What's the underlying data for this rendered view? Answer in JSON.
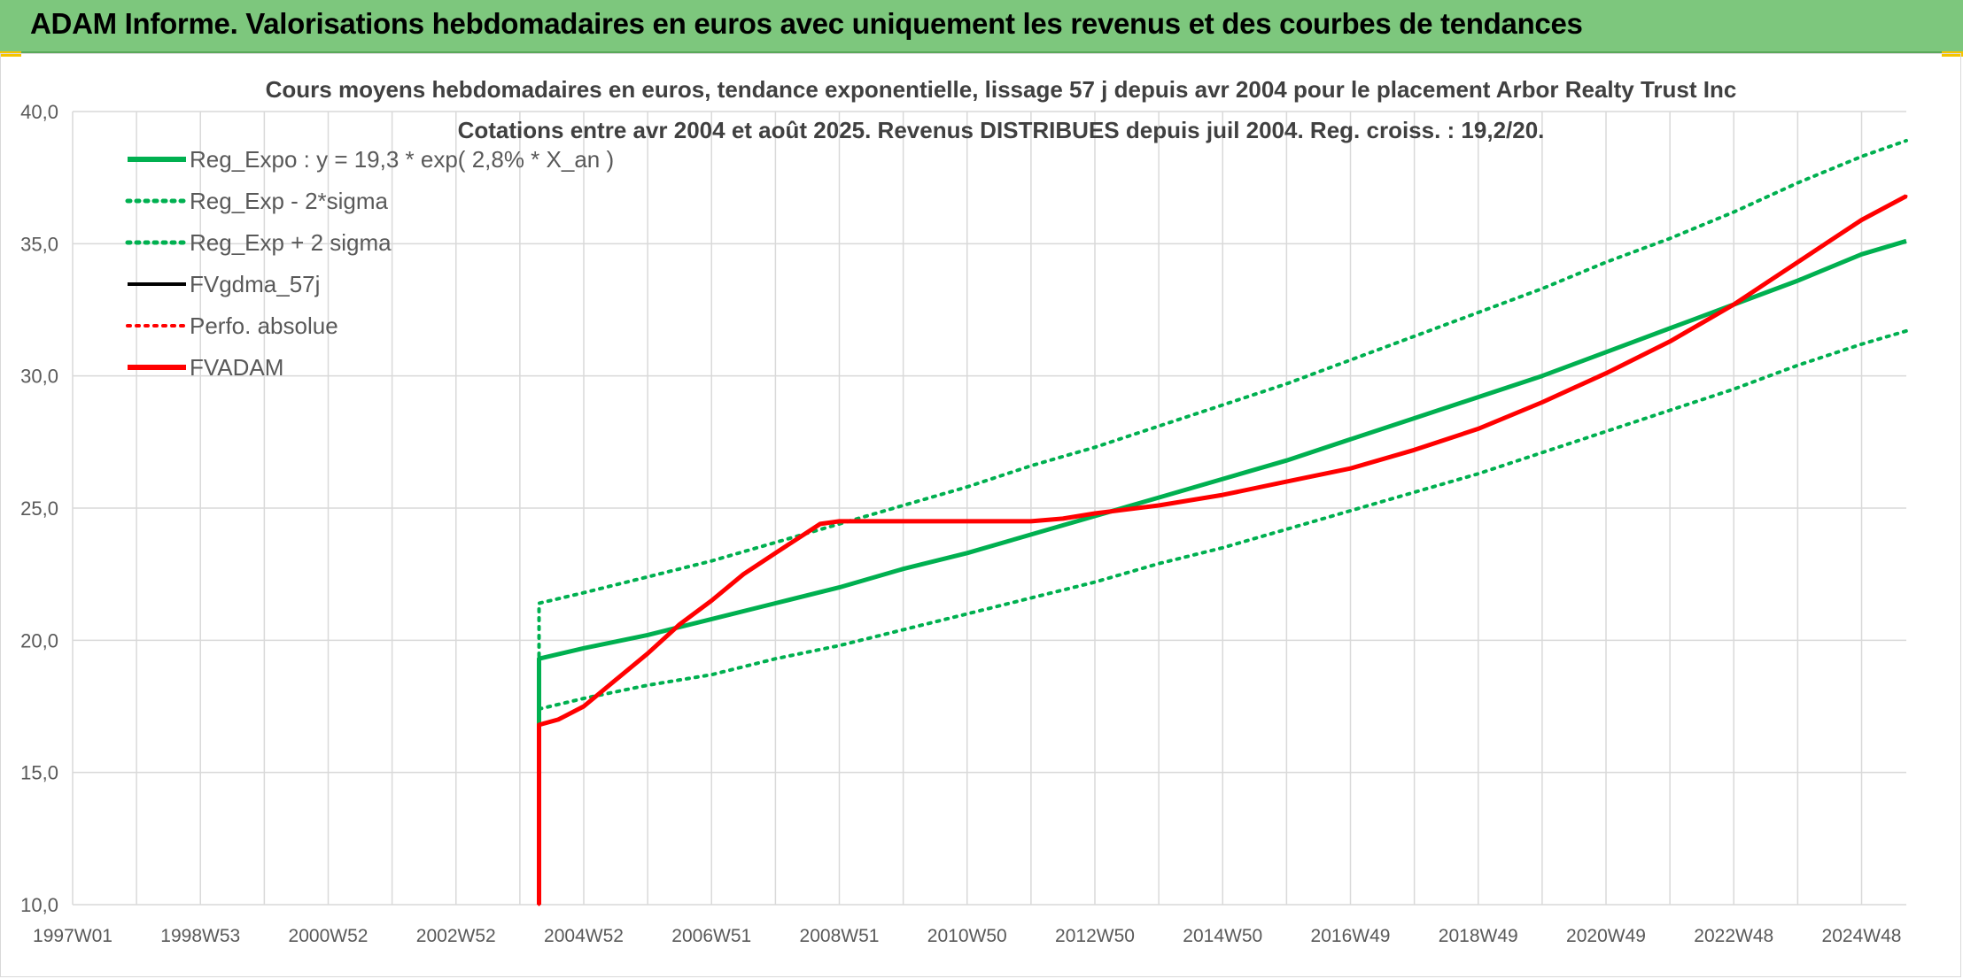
{
  "header": {
    "title": "ADAM Informe. Valorisations hebdomadaires en euros avec uniquement les revenus et des courbes de tendances"
  },
  "colors": {
    "banner": "#7dc77d",
    "green": "#00b050",
    "red": "#ff0000",
    "black": "#000000",
    "grid": "#d9d9d9"
  },
  "chart_data": {
    "type": "line",
    "title": "Cours moyens hebdomadaires en euros, tendance exponentielle, lissage 57 j depuis avr 2004 pour le placement Arbor Realty Trust Inc",
    "subtitle": "Cotations entre avr 2004 et août 2025. Revenus DISTRIBUES depuis juil 2004. Reg. croiss. : 19,2/20.",
    "xlabel": "",
    "ylabel": "",
    "ylim": [
      10,
      40
    ],
    "xlim": [
      1997.0,
      2025.7
    ],
    "grid": true,
    "legend_position": "top-left",
    "y_ticks": [
      "10,0",
      "15,0",
      "20,0",
      "25,0",
      "30,0",
      "35,0",
      "40,0"
    ],
    "x_ticks": [
      {
        "label": "1997W01",
        "year": 1997.0
      },
      {
        "label": "1998W53",
        "year": 1999.0
      },
      {
        "label": "2000W52",
        "year": 2001.0
      },
      {
        "label": "2002W52",
        "year": 2003.0
      },
      {
        "label": "2004W52",
        "year": 2005.0
      },
      {
        "label": "2006W51",
        "year": 2007.0
      },
      {
        "label": "2008W51",
        "year": 2009.0
      },
      {
        "label": "2010W50",
        "year": 2011.0
      },
      {
        "label": "2012W50",
        "year": 2013.0
      },
      {
        "label": "2014W50",
        "year": 2015.0
      },
      {
        "label": "2016W49",
        "year": 2017.0
      },
      {
        "label": "2018W49",
        "year": 2019.0
      },
      {
        "label": "2020W49",
        "year": 2021.0
      },
      {
        "label": "2022W48",
        "year": 2023.0
      },
      {
        "label": "2024W48",
        "year": 2025.0
      }
    ],
    "series": [
      {
        "name": "Reg_Expo : y = 19,3 * exp( 2,8% *  X_an )",
        "color": "#00b050",
        "style": "solid",
        "width": 5,
        "x": [
          2004.3,
          2004.3,
          2005.0,
          2006.0,
          2007.0,
          2008.0,
          2009.0,
          2010.0,
          2011.0,
          2012.0,
          2013.0,
          2014.0,
          2015.0,
          2016.0,
          2017.0,
          2018.0,
          2019.0,
          2020.0,
          2021.0,
          2022.0,
          2023.0,
          2024.0,
          2025.0,
          2025.7
        ],
        "y": [
          16.8,
          19.3,
          19.7,
          20.2,
          20.8,
          21.4,
          22.0,
          22.7,
          23.3,
          24.0,
          24.7,
          25.4,
          26.1,
          26.8,
          27.6,
          28.4,
          29.2,
          30.0,
          30.9,
          31.8,
          32.7,
          33.6,
          34.6,
          35.1
        ]
      },
      {
        "name": "Reg_Exp - 2*sigma",
        "color": "#00b050",
        "style": "dotted",
        "width": 4,
        "x": [
          2004.3,
          2005.0,
          2006.0,
          2007.0,
          2008.0,
          2009.0,
          2010.0,
          2011.0,
          2012.0,
          2013.0,
          2014.0,
          2015.0,
          2016.0,
          2017.0,
          2018.0,
          2019.0,
          2020.0,
          2021.0,
          2022.0,
          2023.0,
          2024.0,
          2025.0,
          2025.7
        ],
        "y": [
          17.4,
          17.8,
          18.3,
          18.7,
          19.3,
          19.8,
          20.4,
          21.0,
          21.6,
          22.2,
          22.9,
          23.5,
          24.2,
          24.9,
          25.6,
          26.3,
          27.1,
          27.9,
          28.7,
          29.5,
          30.4,
          31.2,
          31.7
        ]
      },
      {
        "name": "Reg_Exp + 2 sigma",
        "color": "#00b050",
        "style": "dotted",
        "width": 4,
        "x": [
          2004.3,
          2004.3,
          2005.0,
          2006.0,
          2007.0,
          2008.0,
          2009.0,
          2010.0,
          2011.0,
          2012.0,
          2013.0,
          2014.0,
          2015.0,
          2016.0,
          2017.0,
          2018.0,
          2019.0,
          2020.0,
          2021.0,
          2022.0,
          2023.0,
          2024.0,
          2025.0,
          2025.7
        ],
        "y": [
          17.4,
          21.4,
          21.8,
          22.4,
          23.0,
          23.7,
          24.4,
          25.1,
          25.8,
          26.6,
          27.3,
          28.1,
          28.9,
          29.7,
          30.6,
          31.5,
          32.4,
          33.3,
          34.3,
          35.2,
          36.2,
          37.3,
          38.3,
          38.9
        ]
      },
      {
        "name": "FVgdma_57j",
        "color": "#000000",
        "style": "solid",
        "width": 3,
        "x": [
          2004.3,
          2004.3,
          2004.6,
          2005.0,
          2005.5,
          2006.0,
          2006.5,
          2007.0,
          2007.5,
          2008.0,
          2008.7,
          2009.0,
          2010.0,
          2011.0,
          2012.0,
          2012.5,
          2013.0,
          2014.0,
          2015.0,
          2016.0,
          2017.0,
          2018.0,
          2019.0,
          2020.0,
          2021.0,
          2022.0,
          2022.5,
          2023.0,
          2023.5,
          2024.0,
          2024.5,
          2025.0,
          2025.7
        ],
        "y": [
          10.0,
          16.8,
          17.0,
          17.5,
          18.5,
          19.5,
          20.6,
          21.5,
          22.5,
          23.3,
          24.4,
          24.5,
          24.5,
          24.5,
          24.5,
          24.6,
          24.8,
          25.1,
          25.5,
          26.0,
          26.5,
          27.2,
          28.0,
          29.0,
          30.1,
          31.3,
          32.0,
          32.7,
          33.5,
          34.3,
          35.1,
          35.9,
          36.8
        ]
      },
      {
        "name": "Perfo. absolue",
        "color": "#ff0000",
        "style": "dotted",
        "width": 3,
        "x": [
          2004.3,
          2004.3,
          2004.6,
          2005.0,
          2005.5,
          2006.0,
          2006.5,
          2007.0,
          2007.5,
          2008.0,
          2008.7,
          2009.0,
          2010.0,
          2011.0,
          2012.0,
          2012.5,
          2013.0,
          2014.0,
          2015.0,
          2016.0,
          2017.0,
          2018.0,
          2019.0,
          2020.0,
          2021.0,
          2022.0,
          2022.5,
          2023.0,
          2023.5,
          2024.0,
          2024.5,
          2025.0,
          2025.7
        ],
        "y": [
          10.0,
          16.8,
          17.0,
          17.5,
          18.5,
          19.5,
          20.6,
          21.5,
          22.5,
          23.3,
          24.4,
          24.5,
          24.5,
          24.5,
          24.5,
          24.6,
          24.8,
          25.1,
          25.5,
          26.0,
          26.5,
          27.2,
          28.0,
          29.0,
          30.1,
          31.3,
          32.0,
          32.7,
          33.5,
          34.3,
          35.1,
          35.9,
          36.8
        ]
      },
      {
        "name": "FVADAM",
        "color": "#ff0000",
        "style": "solid",
        "width": 5,
        "x": [
          2004.3,
          2004.3,
          2004.6,
          2005.0,
          2005.5,
          2006.0,
          2006.5,
          2007.0,
          2007.5,
          2008.0,
          2008.7,
          2009.0,
          2010.0,
          2011.0,
          2012.0,
          2012.5,
          2013.0,
          2014.0,
          2015.0,
          2016.0,
          2017.0,
          2018.0,
          2019.0,
          2020.0,
          2021.0,
          2022.0,
          2022.5,
          2023.0,
          2023.5,
          2024.0,
          2024.5,
          2025.0,
          2025.7
        ],
        "y": [
          10.0,
          16.8,
          17.0,
          17.5,
          18.5,
          19.5,
          20.6,
          21.5,
          22.5,
          23.3,
          24.4,
          24.5,
          24.5,
          24.5,
          24.5,
          24.6,
          24.8,
          25.1,
          25.5,
          26.0,
          26.5,
          27.2,
          28.0,
          29.0,
          30.1,
          31.3,
          32.0,
          32.7,
          33.5,
          34.3,
          35.1,
          35.9,
          36.8
        ]
      }
    ]
  }
}
